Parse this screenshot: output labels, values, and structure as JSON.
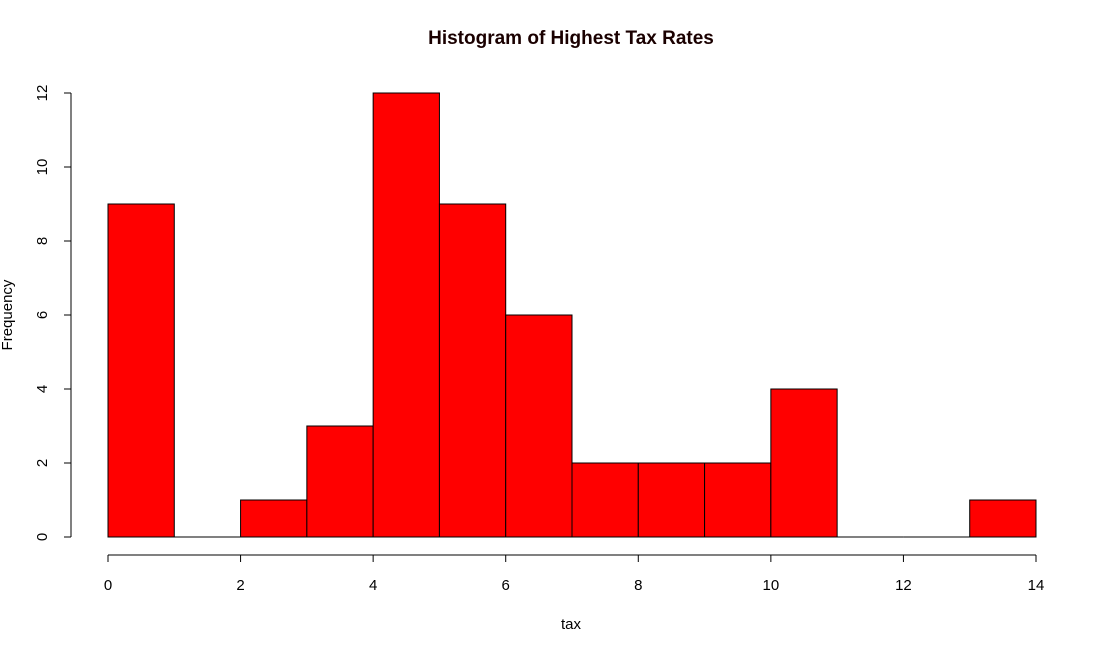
{
  "chart_data": {
    "type": "bar",
    "title": "Histogram of Highest Tax Rates",
    "xlabel": "tax",
    "ylabel": "Frequency",
    "bins": [
      {
        "start": 0,
        "end": 1,
        "count": 9
      },
      {
        "start": 1,
        "end": 2,
        "count": 0
      },
      {
        "start": 2,
        "end": 3,
        "count": 1
      },
      {
        "start": 3,
        "end": 4,
        "count": 3
      },
      {
        "start": 4,
        "end": 5,
        "count": 12
      },
      {
        "start": 5,
        "end": 6,
        "count": 9
      },
      {
        "start": 6,
        "end": 7,
        "count": 6
      },
      {
        "start": 7,
        "end": 8,
        "count": 2
      },
      {
        "start": 8,
        "end": 9,
        "count": 2
      },
      {
        "start": 9,
        "end": 10,
        "count": 2
      },
      {
        "start": 10,
        "end": 11,
        "count": 4
      },
      {
        "start": 11,
        "end": 12,
        "count": 0
      },
      {
        "start": 12,
        "end": 13,
        "count": 0
      },
      {
        "start": 13,
        "end": 14,
        "count": 1
      }
    ],
    "xlim": [
      0,
      14
    ],
    "ylim": [
      0,
      12
    ],
    "x_ticks": [
      "0",
      "2",
      "4",
      "6",
      "8",
      "10",
      "12",
      "14"
    ],
    "y_ticks": [
      "0",
      "2",
      "4",
      "6",
      "8",
      "10",
      "12"
    ],
    "bar_color": "#ff0000",
    "grid": false,
    "legend": "none"
  }
}
